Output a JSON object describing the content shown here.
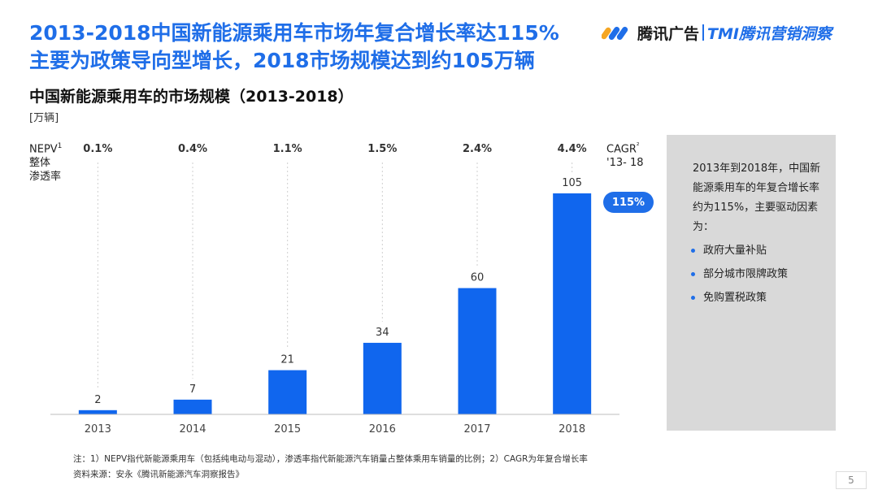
{
  "headline": {
    "line1": "2013-2018中国新能源乘用车市场年复合增长率达115%",
    "line2": "主要为政策导向型增长，2018市场规模达到约105万辆"
  },
  "brand": {
    "name": "腾讯广告",
    "sub": "TMI腾讯营销洞察",
    "accent": "#1f6ee8"
  },
  "chart_data": {
    "type": "bar",
    "title": "中国新能源乘用车的市场规模（2013-2018）",
    "unit": "[万辆]",
    "categories": [
      "2013",
      "2014",
      "2015",
      "2016",
      "2017",
      "2018"
    ],
    "values": [
      2,
      7,
      21,
      34,
      60,
      105
    ],
    "ylim": [
      0,
      105
    ],
    "bar_color": "#1066ee",
    "penetration_label": [
      "NEPV",
      "整体",
      "渗透率"
    ],
    "penetration_sup": "1",
    "penetration": [
      "0.1%",
      "0.4%",
      "1.1%",
      "1.5%",
      "2.4%",
      "4.4%"
    ],
    "cagr_label": [
      "CAGR",
      "'13- 18"
    ],
    "cagr_sup": "²",
    "cagr_value": "115%"
  },
  "side_panel": {
    "text": "2013年到2018年，中国新能源乘用车的年复合增长率约为115%，主要驱动因素为：",
    "items": [
      "政府大量补贴",
      "部分城市限牌政策",
      "免购置税政策"
    ]
  },
  "notes": {
    "line1": "注：1）NEPV指代新能源乘用车（包括纯电动与混动），渗透率指代新能源汽车销量占整体乘用车销量的比例；2）CAGR为年复合增长率",
    "line2": "资料来源：安永《腾讯新能源汽车洞察报告》"
  },
  "page_number": "5"
}
